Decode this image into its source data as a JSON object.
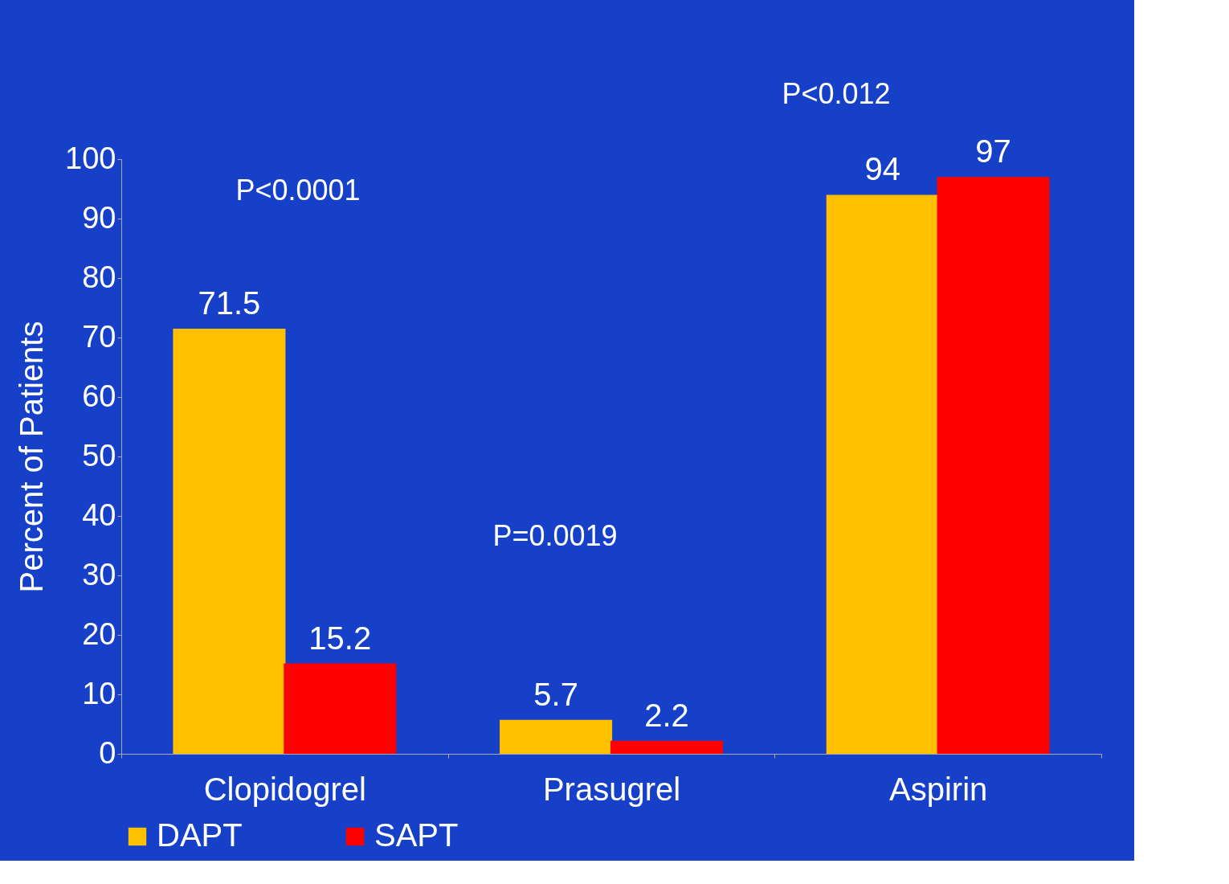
{
  "chart_data": {
    "type": "bar",
    "ylabel": "Percent of Patients",
    "categories": [
      "Clopidogrel",
      "Prasugrel",
      "Aspirin"
    ],
    "series": [
      {
        "name": "DAPT",
        "color": "#ffc000",
        "values": [
          71.5,
          5.7,
          94
        ]
      },
      {
        "name": "SAPT",
        "color": "#ff0000",
        "values": [
          15.2,
          2.2,
          97
        ]
      }
    ],
    "ylim": [
      0,
      100
    ],
    "yticks": [
      0,
      10,
      20,
      30,
      40,
      50,
      60,
      70,
      80,
      90,
      100
    ],
    "grid": false,
    "legend": "bottom",
    "data_labels": true,
    "annotations": [
      "P<0.0001",
      "P=0.0019",
      "P<0.012"
    ]
  }
}
